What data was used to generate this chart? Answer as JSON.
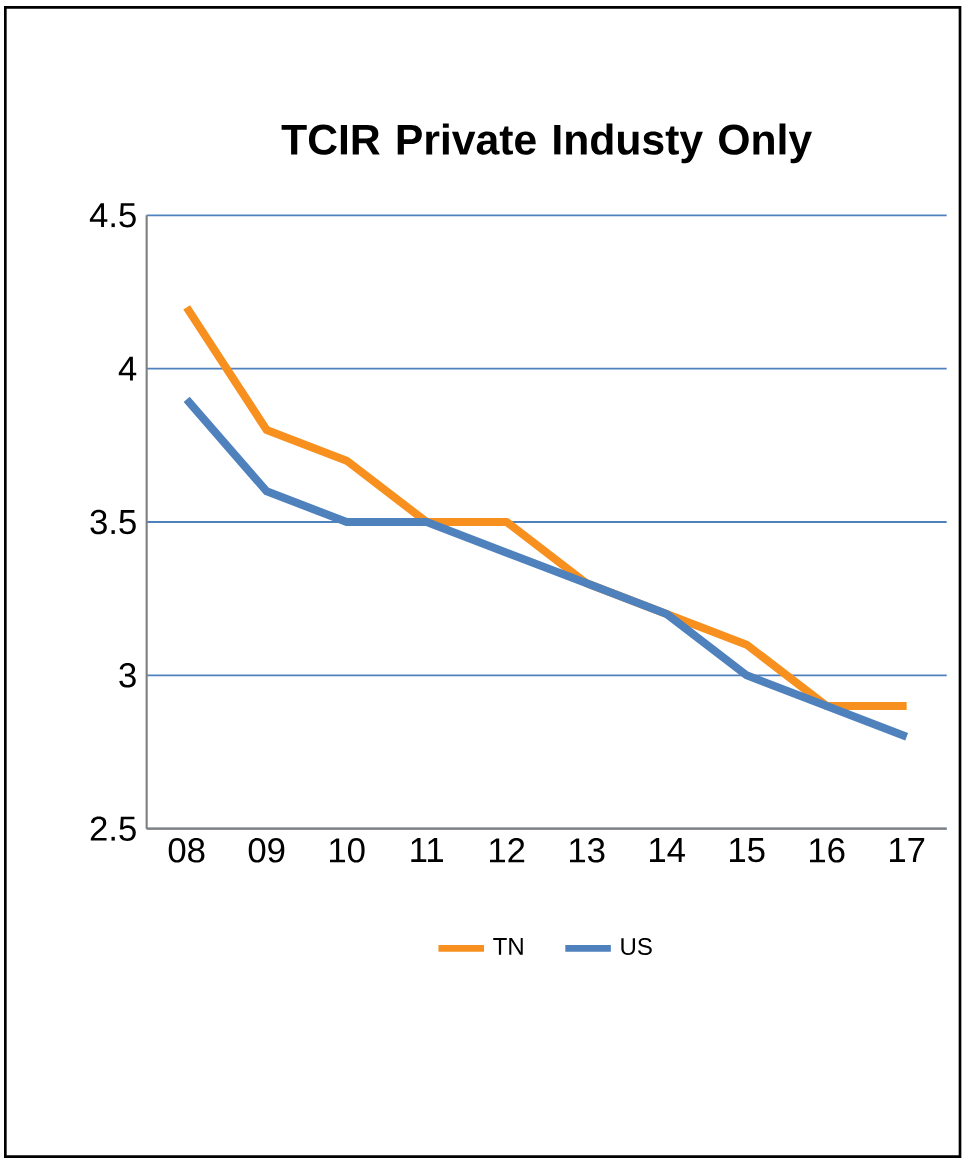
{
  "chart_data": {
    "type": "line",
    "title": "TCIR Private Industy Only",
    "categories": [
      "08",
      "09",
      "10",
      "11",
      "12",
      "13",
      "14",
      "15",
      "16",
      "17"
    ],
    "series": [
      {
        "name": "TN",
        "color": "#f7901e",
        "values": [
          4.2,
          3.8,
          3.7,
          3.5,
          3.5,
          3.3,
          3.2,
          3.1,
          2.9,
          2.9
        ]
      },
      {
        "name": "US",
        "color": "#4f81bd",
        "values": [
          3.9,
          3.6,
          3.5,
          3.5,
          3.4,
          3.3,
          3.2,
          3.0,
          2.9,
          2.8
        ]
      }
    ],
    "ylim": [
      2.5,
      4.5
    ],
    "yticks": [
      2.5,
      3,
      3.5,
      4,
      4.5
    ],
    "grid": "y",
    "legend": "bottom",
    "marker": "none",
    "line_style": "solid"
  }
}
